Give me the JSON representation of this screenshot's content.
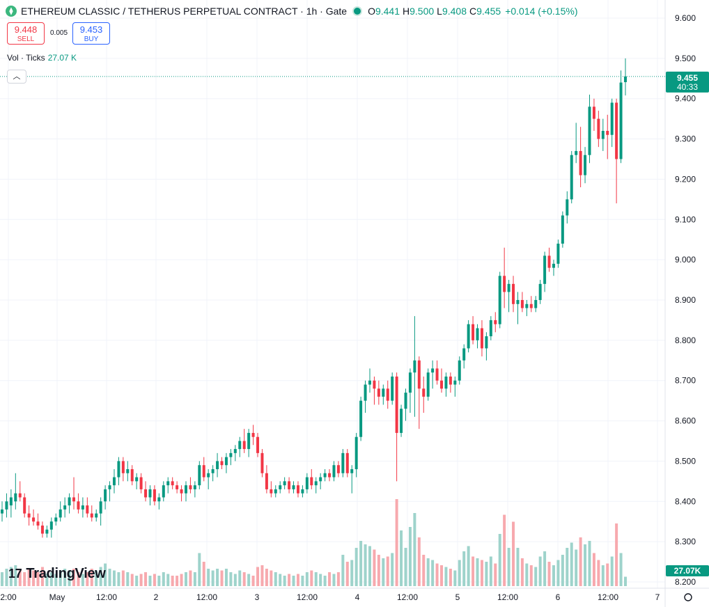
{
  "header": {
    "title": "ETHEREUM CLASSIC / TETHERUS PERPETUAL CONTRACT · 1h · Gate",
    "o_label": "O",
    "o_value": "9.441",
    "h_label": "H",
    "h_value": "9.500",
    "l_label": "L",
    "l_value": "9.408",
    "c_label": "C",
    "c_value": "9.455",
    "change": "+0.014 (+0.15%)"
  },
  "trade": {
    "sell_price": "9.448",
    "sell_label": "SELL",
    "spread": "0.005",
    "buy_price": "9.453",
    "buy_label": "BUY"
  },
  "volume_legend": {
    "label": "Vol · Ticks",
    "value": "27.07 K"
  },
  "branding": {
    "name": "TradingView"
  },
  "colors": {
    "up": "#089981",
    "down": "#f23645",
    "vol_up": "#9ed3cb",
    "vol_down": "#f7a9ae",
    "text": "#131722"
  },
  "chart_data": {
    "type": "candlestick",
    "ylim": [
      8.18,
      9.64
    ],
    "y_ticks": [
      "9.600",
      "9.500",
      "9.400",
      "9.300",
      "9.200",
      "9.100",
      "9.000",
      "8.900",
      "8.800",
      "8.700",
      "8.600",
      "8.500",
      "8.400",
      "8.300",
      "8.200"
    ],
    "x_ticks": [
      "2:00",
      "May",
      "12:00",
      "2",
      "12:00",
      "3",
      "12:00",
      "4",
      "12:00",
      "5",
      "12:00",
      "6",
      "12:00",
      "7"
    ],
    "last_price": "9.455",
    "countdown": "40:33",
    "volume_last": "27.07K",
    "volume_max": 260,
    "candles": [
      {
        "o": 8.37,
        "h": 8.4,
        "l": 8.35,
        "c": 8.38,
        "v": 40
      },
      {
        "o": 8.38,
        "h": 8.42,
        "l": 8.36,
        "c": 8.4,
        "v": 50
      },
      {
        "o": 8.39,
        "h": 8.43,
        "l": 8.36,
        "c": 8.41,
        "v": 55
      },
      {
        "o": 8.4,
        "h": 8.47,
        "l": 8.38,
        "c": 8.42,
        "v": 60
      },
      {
        "o": 8.42,
        "h": 8.45,
        "l": 8.4,
        "c": 8.41,
        "v": 45
      },
      {
        "o": 8.41,
        "h": 8.42,
        "l": 8.36,
        "c": 8.37,
        "v": 40
      },
      {
        "o": 8.37,
        "h": 8.39,
        "l": 8.34,
        "c": 8.36,
        "v": 50
      },
      {
        "o": 8.36,
        "h": 8.38,
        "l": 8.34,
        "c": 8.35,
        "v": 45
      },
      {
        "o": 8.35,
        "h": 8.37,
        "l": 8.33,
        "c": 8.34,
        "v": 40
      },
      {
        "o": 8.34,
        "h": 8.35,
        "l": 8.31,
        "c": 8.32,
        "v": 55
      },
      {
        "o": 8.32,
        "h": 8.34,
        "l": 8.31,
        "c": 8.33,
        "v": 35
      },
      {
        "o": 8.33,
        "h": 8.36,
        "l": 8.31,
        "c": 8.35,
        "v": 40
      },
      {
        "o": 8.35,
        "h": 8.37,
        "l": 8.34,
        "c": 8.36,
        "v": 35
      },
      {
        "o": 8.36,
        "h": 8.4,
        "l": 8.35,
        "c": 8.38,
        "v": 45
      },
      {
        "o": 8.38,
        "h": 8.41,
        "l": 8.36,
        "c": 8.39,
        "v": 50
      },
      {
        "o": 8.39,
        "h": 8.42,
        "l": 8.37,
        "c": 8.41,
        "v": 45
      },
      {
        "o": 8.41,
        "h": 8.46,
        "l": 8.38,
        "c": 8.4,
        "v": 50
      },
      {
        "o": 8.4,
        "h": 8.42,
        "l": 8.37,
        "c": 8.38,
        "v": 40
      },
      {
        "o": 8.38,
        "h": 8.41,
        "l": 8.36,
        "c": 8.39,
        "v": 35
      },
      {
        "o": 8.39,
        "h": 8.41,
        "l": 8.36,
        "c": 8.37,
        "v": 40
      },
      {
        "o": 8.37,
        "h": 8.39,
        "l": 8.35,
        "c": 8.36,
        "v": 50
      },
      {
        "o": 8.36,
        "h": 8.38,
        "l": 8.35,
        "c": 8.37,
        "v": 45
      },
      {
        "o": 8.37,
        "h": 8.41,
        "l": 8.34,
        "c": 8.4,
        "v": 55
      },
      {
        "o": 8.4,
        "h": 8.44,
        "l": 8.38,
        "c": 8.43,
        "v": 65
      },
      {
        "o": 8.43,
        "h": 8.45,
        "l": 8.4,
        "c": 8.44,
        "v": 50
      },
      {
        "o": 8.44,
        "h": 8.48,
        "l": 8.42,
        "c": 8.46,
        "v": 45
      },
      {
        "o": 8.46,
        "h": 8.51,
        "l": 8.44,
        "c": 8.5,
        "v": 40
      },
      {
        "o": 8.5,
        "h": 8.51,
        "l": 8.45,
        "c": 8.47,
        "v": 45
      },
      {
        "o": 8.47,
        "h": 8.5,
        "l": 8.45,
        "c": 8.48,
        "v": 40
      },
      {
        "o": 8.48,
        "h": 8.49,
        "l": 8.44,
        "c": 8.45,
        "v": 35
      },
      {
        "o": 8.45,
        "h": 8.47,
        "l": 8.43,
        "c": 8.46,
        "v": 30
      },
      {
        "o": 8.46,
        "h": 8.47,
        "l": 8.42,
        "c": 8.43,
        "v": 35
      },
      {
        "o": 8.43,
        "h": 8.45,
        "l": 8.4,
        "c": 8.41,
        "v": 40
      },
      {
        "o": 8.41,
        "h": 8.44,
        "l": 8.39,
        "c": 8.43,
        "v": 30
      },
      {
        "o": 8.43,
        "h": 8.44,
        "l": 8.39,
        "c": 8.4,
        "v": 35
      },
      {
        "o": 8.4,
        "h": 8.42,
        "l": 8.38,
        "c": 8.41,
        "v": 30
      },
      {
        "o": 8.41,
        "h": 8.45,
        "l": 8.4,
        "c": 8.44,
        "v": 40
      },
      {
        "o": 8.44,
        "h": 8.46,
        "l": 8.42,
        "c": 8.45,
        "v": 35
      },
      {
        "o": 8.45,
        "h": 8.46,
        "l": 8.43,
        "c": 8.44,
        "v": 30
      },
      {
        "o": 8.44,
        "h": 8.45,
        "l": 8.42,
        "c": 8.43,
        "v": 30
      },
      {
        "o": 8.43,
        "h": 8.44,
        "l": 8.4,
        "c": 8.42,
        "v": 35
      },
      {
        "o": 8.42,
        "h": 8.45,
        "l": 8.4,
        "c": 8.44,
        "v": 40
      },
      {
        "o": 8.44,
        "h": 8.46,
        "l": 8.42,
        "c": 8.43,
        "v": 45
      },
      {
        "o": 8.43,
        "h": 8.45,
        "l": 8.41,
        "c": 8.44,
        "v": 40
      },
      {
        "o": 8.44,
        "h": 8.5,
        "l": 8.43,
        "c": 8.49,
        "v": 95
      },
      {
        "o": 8.49,
        "h": 8.51,
        "l": 8.45,
        "c": 8.46,
        "v": 70
      },
      {
        "o": 8.46,
        "h": 8.48,
        "l": 8.43,
        "c": 8.47,
        "v": 50
      },
      {
        "o": 8.47,
        "h": 8.49,
        "l": 8.45,
        "c": 8.48,
        "v": 45
      },
      {
        "o": 8.48,
        "h": 8.52,
        "l": 8.46,
        "c": 8.5,
        "v": 50
      },
      {
        "o": 8.5,
        "h": 8.51,
        "l": 8.48,
        "c": 8.49,
        "v": 45
      },
      {
        "o": 8.49,
        "h": 8.52,
        "l": 8.47,
        "c": 8.51,
        "v": 50
      },
      {
        "o": 8.51,
        "h": 8.53,
        "l": 8.49,
        "c": 8.52,
        "v": 40
      },
      {
        "o": 8.52,
        "h": 8.54,
        "l": 8.5,
        "c": 8.53,
        "v": 35
      },
      {
        "o": 8.53,
        "h": 8.56,
        "l": 8.51,
        "c": 8.55,
        "v": 45
      },
      {
        "o": 8.55,
        "h": 8.58,
        "l": 8.52,
        "c": 8.53,
        "v": 40
      },
      {
        "o": 8.53,
        "h": 8.58,
        "l": 8.51,
        "c": 8.57,
        "v": 35
      },
      {
        "o": 8.57,
        "h": 8.59,
        "l": 8.54,
        "c": 8.56,
        "v": 30
      },
      {
        "o": 8.56,
        "h": 8.57,
        "l": 8.51,
        "c": 8.52,
        "v": 55
      },
      {
        "o": 8.52,
        "h": 8.53,
        "l": 8.46,
        "c": 8.47,
        "v": 60
      },
      {
        "o": 8.47,
        "h": 8.49,
        "l": 8.42,
        "c": 8.43,
        "v": 50
      },
      {
        "o": 8.43,
        "h": 8.45,
        "l": 8.41,
        "c": 8.42,
        "v": 45
      },
      {
        "o": 8.42,
        "h": 8.44,
        "l": 8.41,
        "c": 8.43,
        "v": 40
      },
      {
        "o": 8.43,
        "h": 8.45,
        "l": 8.42,
        "c": 8.44,
        "v": 35
      },
      {
        "o": 8.44,
        "h": 8.46,
        "l": 8.43,
        "c": 8.45,
        "v": 30
      },
      {
        "o": 8.45,
        "h": 8.46,
        "l": 8.42,
        "c": 8.43,
        "v": 35
      },
      {
        "o": 8.43,
        "h": 8.45,
        "l": 8.42,
        "c": 8.44,
        "v": 30
      },
      {
        "o": 8.44,
        "h": 8.45,
        "l": 8.41,
        "c": 8.42,
        "v": 35
      },
      {
        "o": 8.42,
        "h": 8.44,
        "l": 8.41,
        "c": 8.43,
        "v": 30
      },
      {
        "o": 8.43,
        "h": 8.47,
        "l": 8.42,
        "c": 8.46,
        "v": 40
      },
      {
        "o": 8.46,
        "h": 8.48,
        "l": 8.43,
        "c": 8.44,
        "v": 45
      },
      {
        "o": 8.44,
        "h": 8.46,
        "l": 8.42,
        "c": 8.45,
        "v": 40
      },
      {
        "o": 8.45,
        "h": 8.47,
        "l": 8.43,
        "c": 8.46,
        "v": 35
      },
      {
        "o": 8.46,
        "h": 8.48,
        "l": 8.45,
        "c": 8.47,
        "v": 30
      },
      {
        "o": 8.47,
        "h": 8.48,
        "l": 8.45,
        "c": 8.46,
        "v": 40
      },
      {
        "o": 8.46,
        "h": 8.5,
        "l": 8.45,
        "c": 8.49,
        "v": 35
      },
      {
        "o": 8.49,
        "h": 8.5,
        "l": 8.46,
        "c": 8.47,
        "v": 40
      },
      {
        "o": 8.47,
        "h": 8.53,
        "l": 8.46,
        "c": 8.52,
        "v": 90
      },
      {
        "o": 8.52,
        "h": 8.53,
        "l": 8.46,
        "c": 8.47,
        "v": 70
      },
      {
        "o": 8.47,
        "h": 8.49,
        "l": 8.42,
        "c": 8.48,
        "v": 75
      },
      {
        "o": 8.48,
        "h": 8.57,
        "l": 8.46,
        "c": 8.56,
        "v": 110
      },
      {
        "o": 8.56,
        "h": 8.66,
        "l": 8.55,
        "c": 8.65,
        "v": 130
      },
      {
        "o": 8.65,
        "h": 8.7,
        "l": 8.62,
        "c": 8.69,
        "v": 120
      },
      {
        "o": 8.69,
        "h": 8.73,
        "l": 8.67,
        "c": 8.7,
        "v": 115
      },
      {
        "o": 8.7,
        "h": 8.71,
        "l": 8.64,
        "c": 8.68,
        "v": 105
      },
      {
        "o": 8.68,
        "h": 8.7,
        "l": 8.64,
        "c": 8.66,
        "v": 90
      },
      {
        "o": 8.66,
        "h": 8.69,
        "l": 8.64,
        "c": 8.68,
        "v": 80
      },
      {
        "o": 8.68,
        "h": 8.7,
        "l": 8.63,
        "c": 8.65,
        "v": 85
      },
      {
        "o": 8.65,
        "h": 8.72,
        "l": 8.64,
        "c": 8.71,
        "v": 95
      },
      {
        "o": 8.71,
        "h": 8.72,
        "l": 8.45,
        "c": 8.57,
        "v": 250
      },
      {
        "o": 8.57,
        "h": 8.64,
        "l": 8.56,
        "c": 8.63,
        "v": 160
      },
      {
        "o": 8.63,
        "h": 8.68,
        "l": 8.6,
        "c": 8.67,
        "v": 110
      },
      {
        "o": 8.67,
        "h": 8.73,
        "l": 8.62,
        "c": 8.72,
        "v": 170
      },
      {
        "o": 8.72,
        "h": 8.86,
        "l": 8.61,
        "c": 8.75,
        "v": 210
      },
      {
        "o": 8.75,
        "h": 8.76,
        "l": 8.58,
        "c": 8.68,
        "v": 140
      },
      {
        "o": 8.68,
        "h": 8.71,
        "l": 8.62,
        "c": 8.66,
        "v": 90
      },
      {
        "o": 8.66,
        "h": 8.73,
        "l": 8.65,
        "c": 8.72,
        "v": 80
      },
      {
        "o": 8.72,
        "h": 8.75,
        "l": 8.68,
        "c": 8.73,
        "v": 75
      },
      {
        "o": 8.73,
        "h": 8.75,
        "l": 8.69,
        "c": 8.7,
        "v": 65
      },
      {
        "o": 8.7,
        "h": 8.73,
        "l": 8.67,
        "c": 8.68,
        "v": 60
      },
      {
        "o": 8.68,
        "h": 8.72,
        "l": 8.66,
        "c": 8.71,
        "v": 55
      },
      {
        "o": 8.71,
        "h": 8.72,
        "l": 8.67,
        "c": 8.69,
        "v": 50
      },
      {
        "o": 8.69,
        "h": 8.71,
        "l": 8.66,
        "c": 8.7,
        "v": 45
      },
      {
        "o": 8.7,
        "h": 8.76,
        "l": 8.69,
        "c": 8.75,
        "v": 75
      },
      {
        "o": 8.75,
        "h": 8.79,
        "l": 8.73,
        "c": 8.78,
        "v": 100
      },
      {
        "o": 8.78,
        "h": 8.85,
        "l": 8.77,
        "c": 8.84,
        "v": 115
      },
      {
        "o": 8.84,
        "h": 8.86,
        "l": 8.79,
        "c": 8.8,
        "v": 85
      },
      {
        "o": 8.8,
        "h": 8.84,
        "l": 8.78,
        "c": 8.83,
        "v": 80
      },
      {
        "o": 8.83,
        "h": 8.85,
        "l": 8.76,
        "c": 8.78,
        "v": 75
      },
      {
        "o": 8.78,
        "h": 8.82,
        "l": 8.75,
        "c": 8.81,
        "v": 70
      },
      {
        "o": 8.81,
        "h": 8.86,
        "l": 8.8,
        "c": 8.85,
        "v": 85
      },
      {
        "o": 8.85,
        "h": 8.87,
        "l": 8.82,
        "c": 8.84,
        "v": 65
      },
      {
        "o": 8.84,
        "h": 8.97,
        "l": 8.83,
        "c": 8.96,
        "v": 150
      },
      {
        "o": 8.96,
        "h": 9.03,
        "l": 8.88,
        "c": 8.92,
        "v": 205
      },
      {
        "o": 8.92,
        "h": 8.95,
        "l": 8.87,
        "c": 8.94,
        "v": 110
      },
      {
        "o": 8.94,
        "h": 8.96,
        "l": 8.87,
        "c": 8.89,
        "v": 185
      },
      {
        "o": 8.89,
        "h": 8.92,
        "l": 8.84,
        "c": 8.9,
        "v": 110
      },
      {
        "o": 8.9,
        "h": 8.92,
        "l": 8.87,
        "c": 8.88,
        "v": 80
      },
      {
        "o": 8.88,
        "h": 8.9,
        "l": 8.86,
        "c": 8.89,
        "v": 65
      },
      {
        "o": 8.89,
        "h": 8.91,
        "l": 8.87,
        "c": 8.88,
        "v": 60
      },
      {
        "o": 8.88,
        "h": 8.91,
        "l": 8.87,
        "c": 8.9,
        "v": 55
      },
      {
        "o": 8.9,
        "h": 8.95,
        "l": 8.89,
        "c": 8.94,
        "v": 85
      },
      {
        "o": 8.94,
        "h": 9.02,
        "l": 8.92,
        "c": 9.01,
        "v": 100
      },
      {
        "o": 9.01,
        "h": 9.03,
        "l": 8.97,
        "c": 8.98,
        "v": 70
      },
      {
        "o": 8.98,
        "h": 9.0,
        "l": 8.96,
        "c": 8.99,
        "v": 60
      },
      {
        "o": 8.99,
        "h": 9.05,
        "l": 8.98,
        "c": 9.04,
        "v": 75
      },
      {
        "o": 9.04,
        "h": 9.12,
        "l": 9.03,
        "c": 9.11,
        "v": 90
      },
      {
        "o": 9.11,
        "h": 9.17,
        "l": 9.09,
        "c": 9.15,
        "v": 110
      },
      {
        "o": 9.15,
        "h": 9.27,
        "l": 9.14,
        "c": 9.26,
        "v": 125
      },
      {
        "o": 9.26,
        "h": 9.34,
        "l": 9.24,
        "c": 9.27,
        "v": 105
      },
      {
        "o": 9.27,
        "h": 9.33,
        "l": 9.18,
        "c": 9.21,
        "v": 140
      },
      {
        "o": 9.21,
        "h": 9.28,
        "l": 9.19,
        "c": 9.26,
        "v": 120
      },
      {
        "o": 9.26,
        "h": 9.41,
        "l": 9.24,
        "c": 9.38,
        "v": 130
      },
      {
        "o": 9.38,
        "h": 9.4,
        "l": 9.32,
        "c": 9.35,
        "v": 95
      },
      {
        "o": 9.35,
        "h": 9.37,
        "l": 9.28,
        "c": 9.3,
        "v": 75
      },
      {
        "o": 9.3,
        "h": 9.35,
        "l": 9.27,
        "c": 9.32,
        "v": 60
      },
      {
        "o": 9.32,
        "h": 9.36,
        "l": 9.25,
        "c": 9.31,
        "v": 65
      },
      {
        "o": 9.31,
        "h": 9.4,
        "l": 9.28,
        "c": 9.39,
        "v": 85
      },
      {
        "o": 9.39,
        "h": 9.4,
        "l": 9.14,
        "c": 9.25,
        "v": 180
      },
      {
        "o": 9.25,
        "h": 9.47,
        "l": 9.24,
        "c": 9.44,
        "v": 95
      },
      {
        "o": 9.441,
        "h": 9.5,
        "l": 9.408,
        "c": 9.455,
        "v": 27
      }
    ]
  }
}
